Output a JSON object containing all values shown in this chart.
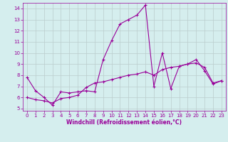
{
  "line1_x": [
    0,
    1,
    2,
    3,
    4,
    5,
    6,
    7,
    8,
    9,
    10,
    11,
    12,
    13,
    14,
    15,
    16,
    17,
    18,
    19,
    20,
    21,
    22,
    23
  ],
  "line1_y": [
    7.8,
    6.6,
    6.0,
    5.3,
    6.5,
    6.4,
    6.5,
    6.6,
    6.5,
    9.4,
    11.1,
    12.6,
    13.0,
    13.4,
    14.3,
    7.0,
    10.0,
    6.8,
    8.8,
    9.0,
    9.4,
    8.4,
    7.2,
    7.5
  ],
  "line2_x": [
    0,
    1,
    2,
    3,
    4,
    5,
    6,
    7,
    8,
    9,
    10,
    11,
    12,
    13,
    14,
    15,
    16,
    17,
    18,
    19,
    20,
    21,
    22,
    23
  ],
  "line2_y": [
    6.0,
    5.8,
    5.7,
    5.5,
    5.9,
    6.0,
    6.2,
    6.9,
    7.3,
    7.4,
    7.6,
    7.8,
    8.0,
    8.1,
    8.3,
    8.0,
    8.5,
    8.7,
    8.8,
    9.0,
    9.1,
    8.7,
    7.3,
    7.5
  ],
  "line_color": "#990099",
  "background_color": "#d5eeee",
  "grid_color": "#bbcccc",
  "xlabel": "Windchill (Refroidissement éolien,°C)",
  "xlim": [
    -0.5,
    23.5
  ],
  "ylim": [
    4.8,
    14.5
  ],
  "yticks": [
    5,
    6,
    7,
    8,
    9,
    10,
    11,
    12,
    13,
    14
  ],
  "xticks": [
    0,
    1,
    2,
    3,
    4,
    5,
    6,
    7,
    8,
    9,
    10,
    11,
    12,
    13,
    14,
    15,
    16,
    17,
    18,
    19,
    20,
    21,
    22,
    23
  ],
  "marker": "+",
  "markersize": 3,
  "linewidth": 0.8,
  "tick_fontsize": 5,
  "xlabel_fontsize": 5.5
}
